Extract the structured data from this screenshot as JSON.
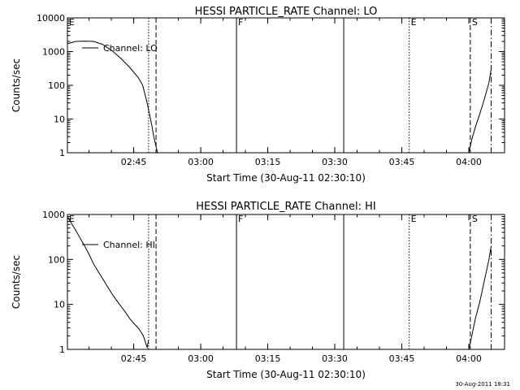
{
  "footer_timestamp": "30-Aug-2011 18:31",
  "chart_data": [
    {
      "type": "line",
      "title": "HESSI PARTICLE_RATE Channel: LO",
      "xlabel": "Start Time (30-Aug-11 02:30:10)",
      "ylabel": "Counts/sec",
      "y_scale": "log",
      "ylim": [
        1,
        10000
      ],
      "xlim": [
        "02:30:10",
        "04:08:00"
      ],
      "x_ticks": [
        "02:45",
        "03:00",
        "03:15",
        "03:30",
        "03:45",
        "04:00"
      ],
      "y_ticks": [
        "1",
        "10",
        "100",
        "1000",
        "10000"
      ],
      "legend": {
        "label": "Channel: LO",
        "placement": "top-left"
      },
      "markers": [
        {
          "label": "E",
          "time": "02:30:10",
          "style": "dotted"
        },
        {
          "label": "",
          "time": "02:48:20",
          "style": "dotted"
        },
        {
          "label": "",
          "time": "02:50:00",
          "style": "dashed"
        },
        {
          "label": "F",
          "time": "03:08:00",
          "style": "solid"
        },
        {
          "label": "",
          "time": "03:32:00",
          "style": "solid"
        },
        {
          "label": "E",
          "time": "03:46:40",
          "style": "dotted"
        },
        {
          "label": "S",
          "time": "04:00:20",
          "style": "dashed"
        },
        {
          "label": "",
          "time": "04:05:00",
          "style": "dashdot"
        }
      ],
      "series": [
        {
          "segments": [
            {
              "x": [
                "02:30:10",
                "02:32:00",
                "02:34:00",
                "02:36:00",
                "02:38:00",
                "02:40:00",
                "02:42:00",
                "02:44:00",
                "02:46:00",
                "02:47:00",
                "02:48:00",
                "02:49:00",
                "02:49:30",
                "02:50:00",
                "02:50:20"
              ],
              "y": [
                1700,
                2000,
                2050,
                2000,
                1650,
                1100,
                650,
                350,
                170,
                100,
                30,
                7,
                3,
                1.5,
                1
              ]
            },
            {
              "x": [
                "04:00:00",
                "04:00:40",
                "04:01:30",
                "04:02:30",
                "04:03:30",
                "04:04:30",
                "04:05:00"
              ],
              "y": [
                1,
                2.5,
                6,
                15,
                40,
                120,
                300
              ]
            }
          ]
        }
      ]
    },
    {
      "type": "line",
      "title": "HESSI PARTICLE_RATE Channel: HI",
      "xlabel": "Start Time (30-Aug-11 02:30:10)",
      "ylabel": "Counts/sec",
      "y_scale": "log",
      "ylim": [
        1,
        1000
      ],
      "xlim": [
        "02:30:10",
        "04:08:00"
      ],
      "x_ticks": [
        "02:45",
        "03:00",
        "03:15",
        "03:30",
        "03:45",
        "04:00"
      ],
      "y_ticks": [
        "1",
        "10",
        "100",
        "1000"
      ],
      "legend": {
        "label": "Channel: HI",
        "placement": "top-left"
      },
      "markers": [
        {
          "label": "E",
          "time": "02:30:10",
          "style": "dotted"
        },
        {
          "label": "",
          "time": "02:48:20",
          "style": "dotted"
        },
        {
          "label": "",
          "time": "02:50:00",
          "style": "dashed"
        },
        {
          "label": "F",
          "time": "03:08:00",
          "style": "solid"
        },
        {
          "label": "",
          "time": "03:32:00",
          "style": "solid"
        },
        {
          "label": "E",
          "time": "03:46:40",
          "style": "dotted"
        },
        {
          "label": "S",
          "time": "04:00:20",
          "style": "dashed"
        },
        {
          "label": "",
          "time": "04:05:00",
          "style": "dashdot"
        }
      ],
      "series": [
        {
          "segments": [
            {
              "x": [
                "02:30:10",
                "02:31:00",
                "02:32:00",
                "02:33:00",
                "02:34:00",
                "02:35:00",
                "02:36:00",
                "02:37:00",
                "02:38:00",
                "02:39:00",
                "02:40:00",
                "02:41:00",
                "02:42:00",
                "02:43:00",
                "02:44:00",
                "02:45:00",
                "02:46:00",
                "02:46:40",
                "02:47:10",
                "02:47:40",
                "02:48:00",
                "02:48:20"
              ],
              "y": [
                900,
                650,
                450,
                300,
                200,
                130,
                80,
                55,
                38,
                26,
                18,
                13,
                9.5,
                7,
                5,
                3.8,
                3,
                2.4,
                2,
                1.4,
                1.1,
                1.6
              ]
            },
            {
              "x": [
                "04:00:00",
                "04:00:40",
                "04:01:30",
                "04:02:30",
                "04:03:30",
                "04:04:30",
                "04:05:00"
              ],
              "y": [
                1,
                2,
                5,
                12,
                35,
                100,
                200
              ]
            }
          ]
        }
      ]
    }
  ]
}
